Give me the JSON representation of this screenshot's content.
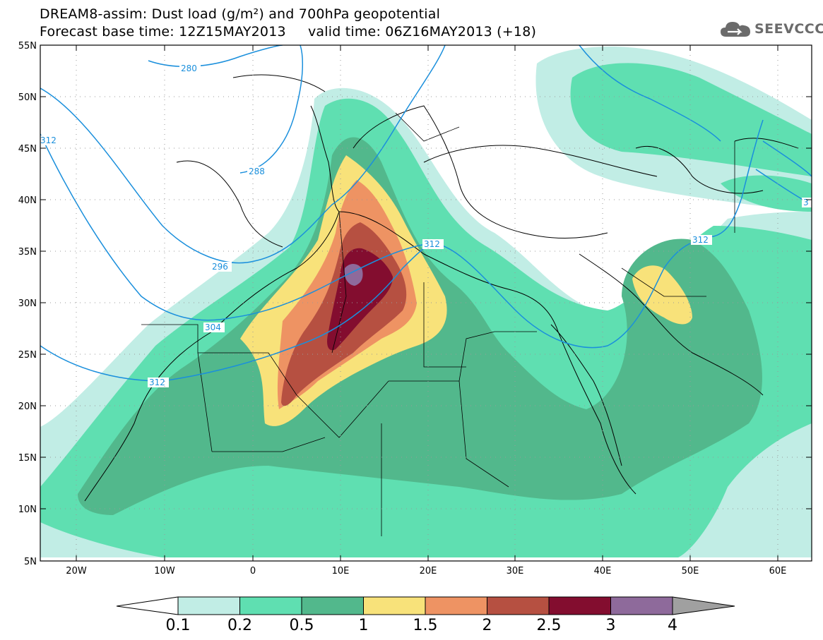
{
  "title_line1": "DREAM8-assim: Dust load (g/m²) and 700hPa geopotential",
  "title_line2": "Forecast base time: 12Z15MAY2013     valid time: 06Z16MAY2013 (+18)",
  "logo": {
    "icon": "cloud-icon",
    "text": "SEEVCCC"
  },
  "lat_labels": [
    "55N",
    "50N",
    "45N",
    "40N",
    "35N",
    "30N",
    "25N",
    "20N",
    "15N",
    "10N",
    "5N"
  ],
  "lon_labels": [
    "20W",
    "10W",
    "0",
    "10E",
    "20E",
    "30E",
    "40E",
    "50E",
    "60E"
  ],
  "contour_labels": [
    "280",
    "288",
    "296",
    "304",
    "312",
    "312",
    "312",
    "312",
    "3"
  ],
  "colorbar": {
    "levels": [
      "0.1",
      "0.2",
      "0.5",
      "1",
      "1.5",
      "2",
      "2.5",
      "3",
      "4"
    ],
    "colors": [
      "#c1ede5",
      "#5fdfb1",
      "#52b88c",
      "#f8e27a",
      "#ee9363",
      "#b65041",
      "#830d2f",
      "#8e6a9b"
    ],
    "under_color": "#ffffff",
    "over_color": "#a0a0a0"
  },
  "colors": {
    "coast": "#000000",
    "contour": "#1a8fdc"
  }
}
